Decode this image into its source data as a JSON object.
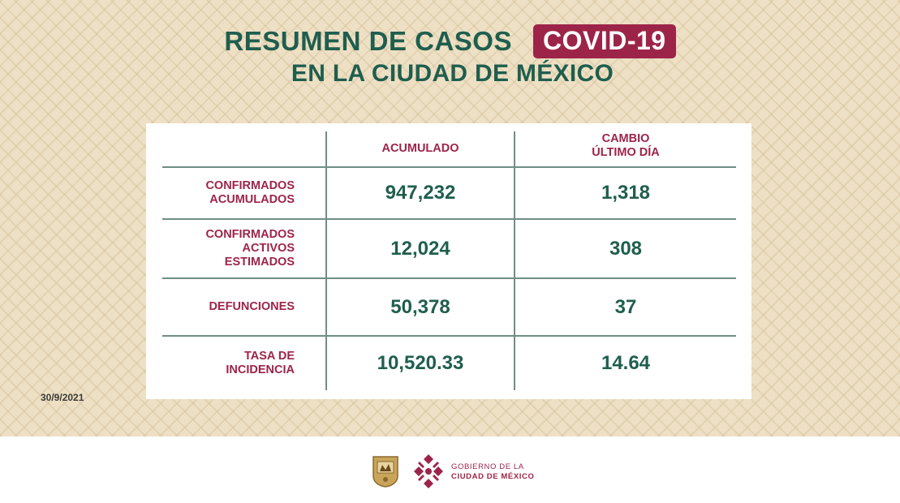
{
  "title": {
    "main": "RESUMEN DE CASOS",
    "badge": "COVID-19",
    "subtitle": "EN LA CIUDAD DE MÉXICO"
  },
  "table": {
    "headers": [
      "ACUMULADO",
      "CAMBIO\nÚLTIMO DÍA"
    ],
    "rows": [
      {
        "label": "CONFIRMADOS\nACUMULADOS",
        "acumulado": "947,232",
        "cambio": "1,318"
      },
      {
        "label": "CONFIRMADOS\nACTIVOS\nESTIMADOS",
        "acumulado": "12,024",
        "cambio": "308"
      },
      {
        "label": "DEFUNCIONES",
        "acumulado": "50,378",
        "cambio": "37"
      },
      {
        "label": "TASA DE\nINCIDENCIA",
        "acumulado": "10,520.33",
        "cambio": "14.64"
      }
    ]
  },
  "date": "30/9/2021",
  "footer": {
    "gov_line1": "GOBIERNO DE LA",
    "gov_line2": "CIUDAD DE MÉXICO",
    "icons": [
      "coat-of-arms-icon",
      "cdmx-logo-icon"
    ]
  },
  "colors": {
    "green": "#1f5e4e",
    "wine": "#9d2449",
    "background": "#eee0c4"
  }
}
